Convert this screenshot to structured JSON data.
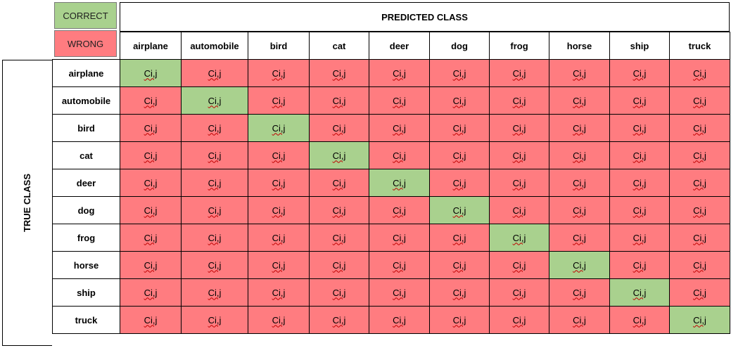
{
  "legend": {
    "correct_label": "CORRECT",
    "wrong_label": "WRONG"
  },
  "colors": {
    "correct": "#a9d18e",
    "wrong": "#ff7c80"
  },
  "predicted_label": "PREDICTED CLASS",
  "true_label": "TRUE CLASS",
  "classes": [
    "airplane",
    "automobile",
    "bird",
    "cat",
    "deer",
    "dog",
    "frog",
    "horse",
    "ship",
    "truck"
  ],
  "cell_text": "Ci,j"
}
